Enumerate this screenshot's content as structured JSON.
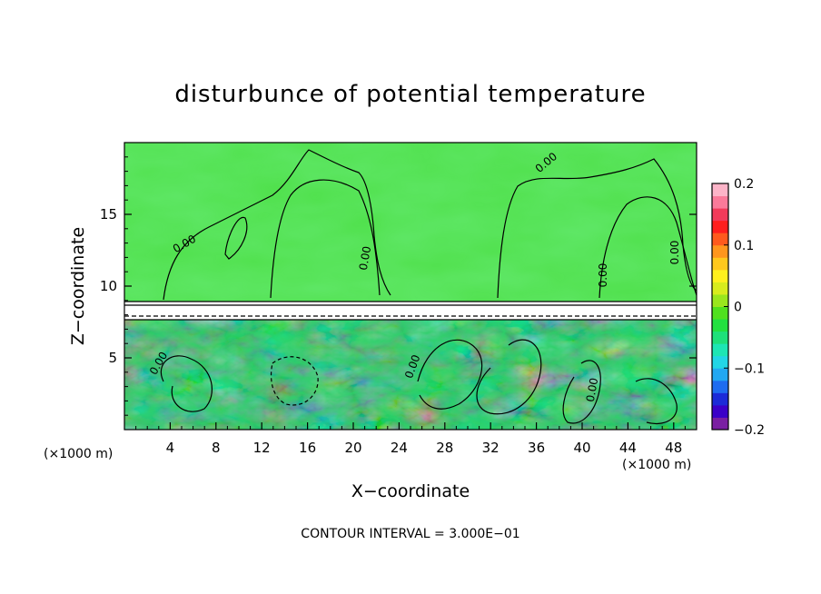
{
  "chart_data": {
    "type": "heatmap",
    "title": "disturbunce of potential temperature",
    "xlabel": "X−coordinate",
    "ylabel": "Z−coordinate",
    "x_unit_label": "(×1000 m)",
    "x_unit_label_right": "(×1000 m)",
    "footer": "CONTOUR INTERVAL = 3.000E−01",
    "xlim": [
      0,
      50
    ],
    "ylim": [
      0,
      20
    ],
    "x_ticks": [
      4,
      8,
      12,
      16,
      20,
      24,
      28,
      32,
      36,
      40,
      44,
      48
    ],
    "x_tick_labels": [
      "4",
      "8",
      "12",
      "16",
      "20",
      "24",
      "28",
      "32",
      "36",
      "40",
      "44",
      "48"
    ],
    "y_ticks": [
      5,
      10,
      15
    ],
    "y_tick_labels": [
      "5",
      "10",
      "15"
    ],
    "contour_label": "0.00",
    "contour_interval": 0.3,
    "colorbar": {
      "min": -0.2,
      "max": 0.2,
      "ticks": [
        0.2,
        0.1,
        0,
        -0.1,
        -0.2
      ],
      "tick_labels": [
        "0.2",
        "0.1",
        "0",
        "−0.1",
        "−0.2"
      ],
      "colors": [
        "#7a1fa2",
        "#3b00c8",
        "#1c2bd8",
        "#1e6cf0",
        "#22a8f2",
        "#22d6e6",
        "#1ee6b4",
        "#1ee07a",
        "#22e040",
        "#50e01e",
        "#9ae61e",
        "#d8ec1e",
        "#fff01e",
        "#ffc81e",
        "#ff961e",
        "#ff5a1e",
        "#ff1e1e",
        "#f23a5a",
        "#fa7a9a",
        "#fcb4c8"
      ]
    },
    "upper_layer_value": 0.0,
    "inversion_band_z": [
      8.0,
      9.0
    ],
    "lower_layer_range": [
      -0.3,
      0.3
    ]
  }
}
